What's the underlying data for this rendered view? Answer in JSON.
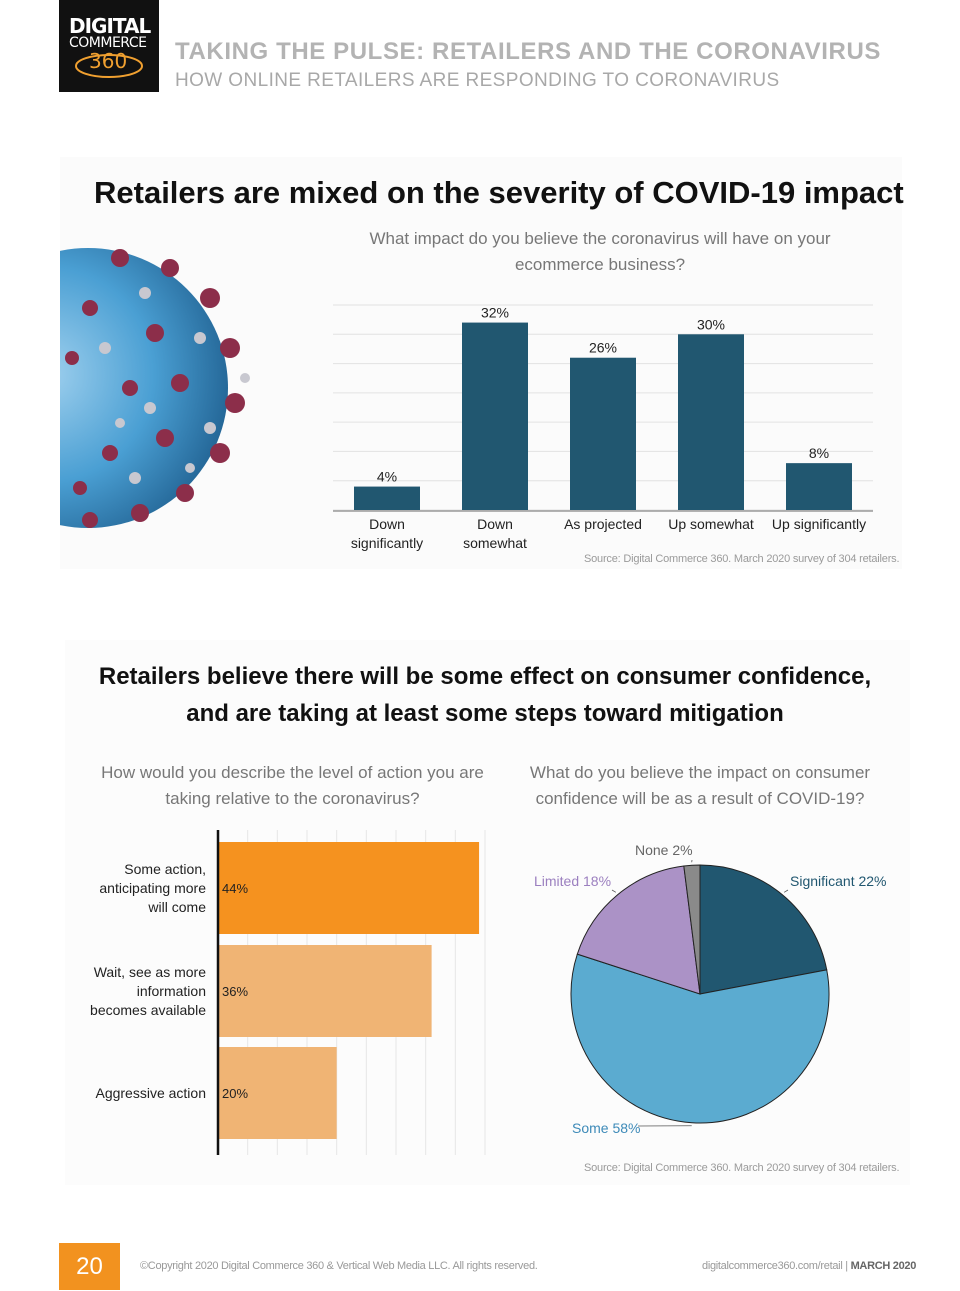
{
  "logo": {
    "line1": "DIGITAL",
    "line2": "COMMERCE",
    "line3": "360"
  },
  "header": {
    "title": "TAKING THE PULSE: RETAILERS AND THE CORONAVIRUS",
    "subtitle": "HOW ONLINE RETAILERS ARE RESPONDING TO CORONAVIRUS"
  },
  "section1": {
    "title": "Retailers are mixed on the severity of COVID-19 impact",
    "source": "Source: Digital Commerce 360. March 2020 survey of 304 retailers."
  },
  "section2": {
    "title_line1": "Retailers believe there will be some effect on consumer confidence,",
    "title_line2": "and are taking at least some steps toward mitigation",
    "source": "Source: Digital Commerce 360. March 2020 survey of 304 retailers."
  },
  "chart_data": [
    {
      "type": "bar",
      "title": "What impact do you believe the coronavirus will have on your ecommerce business?",
      "categories": [
        "Down significantly",
        "Down somewhat",
        "As projected",
        "Up somewhat",
        "Up significantly"
      ],
      "category_lines": [
        [
          "Down",
          "significantly"
        ],
        [
          "Down",
          "somewhat"
        ],
        [
          "As projected"
        ],
        [
          "Up somewhat"
        ],
        [
          "Up significantly"
        ]
      ],
      "values": [
        4,
        32,
        26,
        30,
        8
      ],
      "value_labels": [
        "4%",
        "32%",
        "26%",
        "30%",
        "8%"
      ],
      "unit": "%",
      "ylim": [
        0,
        35
      ],
      "grid": true,
      "color": "#215770"
    },
    {
      "type": "bar",
      "orientation": "horizontal",
      "title": "How would you describe the level of action you are taking relative to the coronavirus?",
      "categories": [
        "Some action, anticipating more will come",
        "Wait, see as more information becomes available",
        "Aggressive action"
      ],
      "category_lines": [
        [
          "Some action,",
          "anticipating more",
          "will come"
        ],
        [
          "Wait, see as more",
          "information",
          "becomes available"
        ],
        [
          "Aggressive action"
        ]
      ],
      "values": [
        44,
        36,
        20
      ],
      "value_labels": [
        "44%",
        "36%",
        "20%"
      ],
      "unit": "%",
      "xlim": [
        0,
        45
      ],
      "colors": [
        "#f5921f",
        "#f0b474",
        "#f0b474"
      ]
    },
    {
      "type": "pie",
      "title": "What do you believe the impact on consumer confidence will be as a result of COVID-19?",
      "labels": [
        "Significant",
        "Some",
        "Limited",
        "None"
      ],
      "values": [
        22,
        58,
        18,
        2
      ],
      "value_labels": [
        "Significant 22%",
        "Some 58%",
        "Limited 18%",
        "None 2%"
      ],
      "unit": "%",
      "colors": [
        "#215770",
        "#5babd0",
        "#ab92c6",
        "#8a8a8a"
      ],
      "label_colors": [
        "#215770",
        "#3d8ab8",
        "#9b7fbf",
        "#666666"
      ]
    }
  ],
  "footer": {
    "page_number": "20",
    "copyright": "©Copyright 2020 Digital Commerce 360 & Vertical Web Media LLC. All rights reserved.",
    "site": "digitalcommerce360.com/retail",
    "separator": " | ",
    "date": "MARCH 2020"
  }
}
